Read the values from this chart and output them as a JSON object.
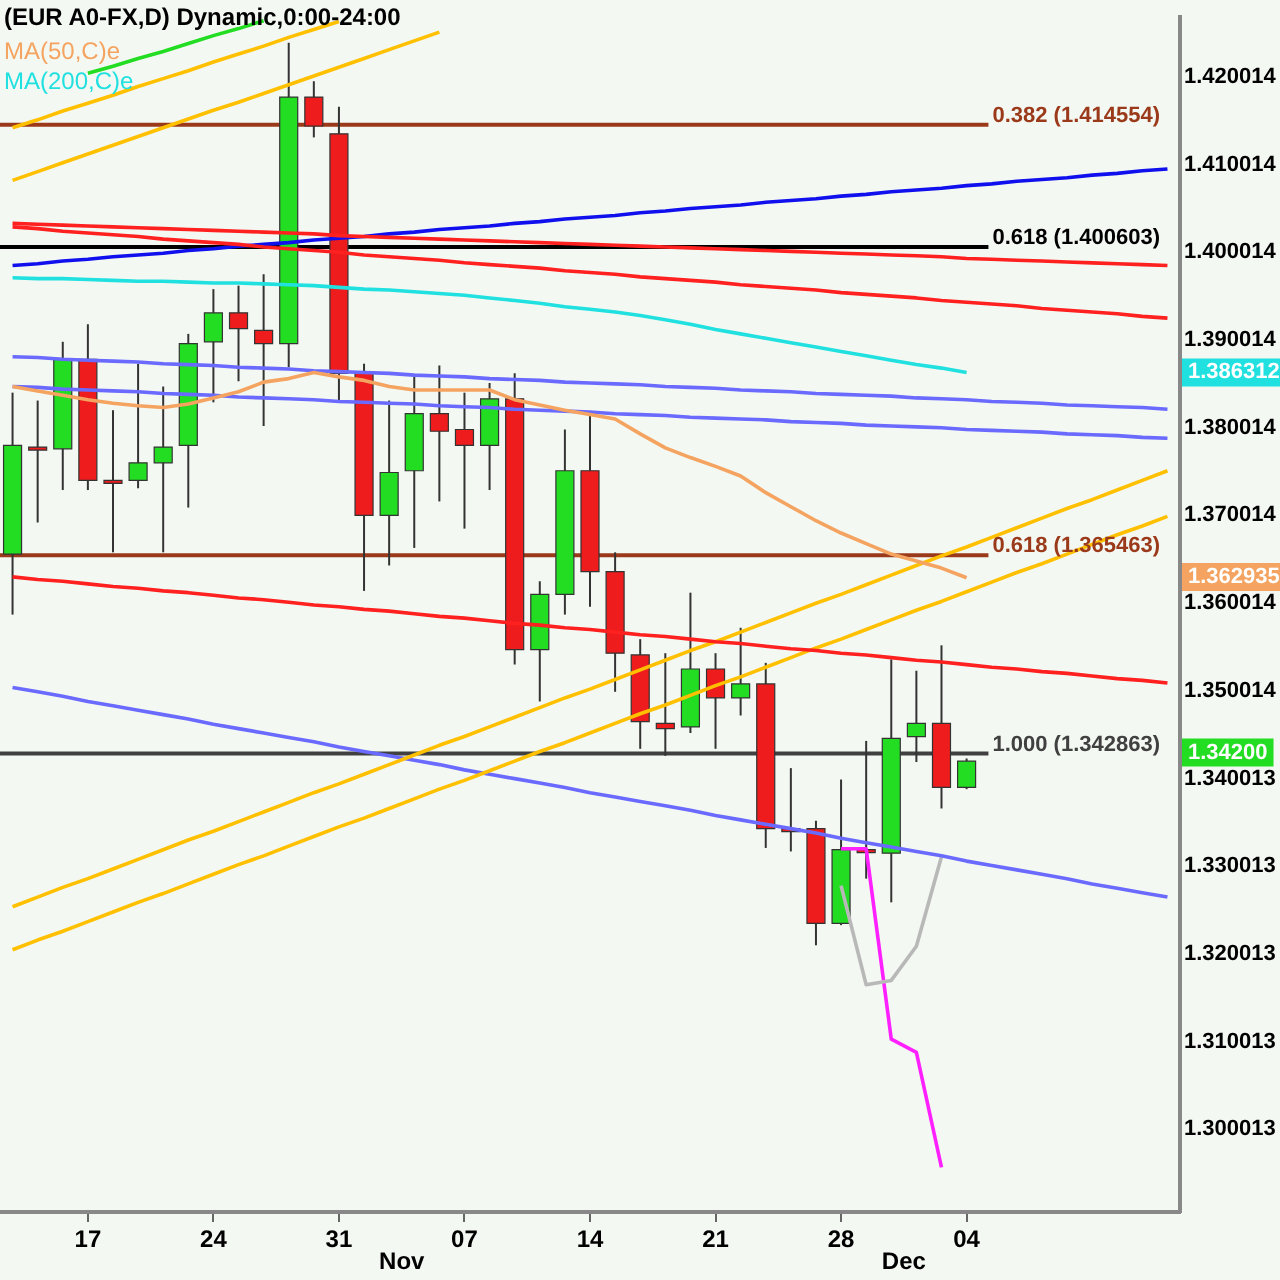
{
  "chart_data": {
    "type": "candlestick",
    "title": "(EUR A0-FX,D) Dynamic,0:00-24:00",
    "categories": [
      null,
      null,
      null,
      "17",
      null,
      null,
      null,
      null,
      "24",
      null,
      null,
      null,
      null,
      "31",
      null,
      null,
      null,
      null,
      "07",
      null,
      null,
      null,
      null,
      "14",
      null,
      null,
      null,
      null,
      "21",
      null,
      null,
      null,
      null,
      "28",
      null,
      null,
      null,
      null,
      "04",
      null,
      null,
      null,
      null,
      null,
      null,
      null,
      null
    ],
    "ohlc": [
      [
        1.3656,
        1.384,
        1.3587,
        1.378
      ],
      [
        1.3778,
        1.3831,
        1.3692,
        1.3776
      ],
      [
        1.3776,
        1.3898,
        1.3729,
        1.3878
      ],
      [
        1.3878,
        1.3918,
        1.3729,
        1.374
      ],
      [
        1.374,
        1.382,
        1.3658,
        1.374
      ],
      [
        1.374,
        1.3873,
        1.3731,
        1.376
      ],
      [
        1.376,
        1.3847,
        1.3658,
        1.3778
      ],
      [
        1.378,
        1.3907,
        1.3709,
        1.3896
      ],
      [
        1.3898,
        1.3958,
        1.3829,
        1.3931
      ],
      [
        1.3931,
        1.3962,
        1.3853,
        1.3913
      ],
      [
        1.3911,
        1.3975,
        1.3802,
        1.3896
      ],
      [
        1.3896,
        1.4239,
        1.3869,
        1.4177
      ],
      [
        1.4177,
        1.4195,
        1.4131,
        1.4144
      ],
      [
        1.4135,
        1.4166,
        1.3831,
        1.3862
      ],
      [
        1.3862,
        1.3873,
        1.3614,
        1.37
      ],
      [
        1.37,
        1.3831,
        1.3643,
        1.3749
      ],
      [
        1.3751,
        1.3858,
        1.3663,
        1.3816
      ],
      [
        1.3816,
        1.3871,
        1.3716,
        1.3796
      ],
      [
        1.3798,
        1.384,
        1.3685,
        1.378
      ],
      [
        1.378,
        1.3851,
        1.3729,
        1.3833
      ],
      [
        1.3833,
        1.3862,
        1.353,
        1.3547
      ],
      [
        1.3547,
        1.3625,
        1.3488,
        1.361
      ],
      [
        1.361,
        1.3798,
        1.3587,
        1.3751
      ],
      [
        1.3751,
        1.3818,
        1.3596,
        1.3636
      ],
      [
        1.3636,
        1.3658,
        1.3499,
        1.3543
      ],
      [
        1.3541,
        1.3559,
        1.3434,
        1.3465
      ],
      [
        1.3463,
        1.3543,
        1.3426,
        1.3457
      ],
      [
        1.3459,
        1.3612,
        1.3452,
        1.3525
      ],
      [
        1.3525,
        1.3543,
        1.3434,
        1.3492
      ],
      [
        1.3492,
        1.3572,
        1.3472,
        1.3508
      ],
      [
        1.3508,
        1.3532,
        1.3321,
        1.3343
      ],
      [
        1.3343,
        1.3412,
        1.3317,
        1.3343
      ],
      [
        1.3343,
        1.3352,
        1.321,
        1.3235
      ],
      [
        1.3235,
        1.3399,
        1.3233,
        1.3319
      ],
      [
        1.3319,
        1.3443,
        1.3286,
        1.3317
      ],
      [
        1.3315,
        1.3536,
        1.3259,
        1.3446
      ],
      [
        1.3448,
        1.3523,
        1.3419,
        1.3463
      ],
      [
        1.3463,
        1.3552,
        1.3366,
        1.339
      ],
      [
        1.339,
        1.3423,
        1.3388,
        1.342
      ],
      null,
      null,
      null,
      null,
      null,
      null,
      null,
      null
    ],
    "colors": [
      "#22dd22",
      "#ee1c1c",
      "#22dd22",
      "#ee1c1c",
      "#ee1c1c",
      "#22dd22",
      "#22dd22",
      "#22dd22",
      "#22dd22",
      "#ee1c1c",
      "#ee1c1c",
      "#22dd22",
      "#ee1c1c",
      "#ee1c1c",
      "#ee1c1c",
      "#22dd22",
      "#22dd22",
      "#ee1c1c",
      "#ee1c1c",
      "#22dd22",
      "#ee1c1c",
      "#22dd22",
      "#22dd22",
      "#ee1c1c",
      "#ee1c1c",
      "#ee1c1c",
      "#ee1c1c",
      "#22dd22",
      "#ee1c1c",
      "#22dd22",
      "#ee1c1c",
      "#ee1c1c",
      "#ee1c1c",
      "#22dd22",
      "#ee1c1c",
      "#22dd22",
      "#22dd22",
      "#ee1c1c",
      "#22dd22",
      null,
      null,
      null,
      null,
      null,
      null,
      null,
      null
    ],
    "series": [
      {
        "name": "MA(50,C)e",
        "type": "line",
        "color": "#f4a460",
        "values": [
          1.3847,
          1.3842,
          1.3837,
          1.3832,
          1.3828,
          1.3825,
          1.3823,
          1.3827,
          1.3834,
          1.3841,
          1.3852,
          1.3856,
          1.3863,
          1.3858,
          1.3854,
          1.3847,
          1.3843,
          1.3843,
          1.3843,
          1.3843,
          1.3832,
          1.3826,
          1.382,
          1.3815,
          1.381,
          1.3793,
          1.3777,
          1.3766,
          1.3756,
          1.3745,
          1.3726,
          1.371,
          1.3694,
          1.368,
          1.3668,
          1.3656,
          1.3648,
          1.364,
          1.3629,
          null,
          null,
          null,
          null,
          null,
          null,
          null,
          null
        ]
      },
      {
        "name": "MA(200,C)e",
        "type": "line",
        "color": "#20e0e0",
        "values": [
          1.3971,
          1.397,
          1.397,
          1.3969,
          1.3968,
          1.3967,
          1.3967,
          1.3966,
          1.3965,
          1.3965,
          1.3964,
          1.3963,
          1.3962,
          1.396,
          1.3958,
          1.3957,
          1.3955,
          1.3953,
          1.3951,
          1.3948,
          1.3945,
          1.3942,
          1.3938,
          1.3935,
          1.3932,
          1.3928,
          1.3923,
          1.3918,
          1.3912,
          1.3907,
          1.3902,
          1.3897,
          1.3892,
          1.3887,
          1.3882,
          1.3877,
          1.3872,
          1.3868,
          1.3863,
          null,
          null,
          null,
          null,
          null,
          null,
          null,
          null
        ]
      },
      {
        "type": "line",
        "color": "#22dd22",
        "values": [
          null,
          null,
          null,
          1.4204,
          1.4212,
          1.4221,
          1.4229,
          1.4238,
          1.4247,
          1.4255,
          1.4264,
          null,
          null,
          null,
          null,
          null,
          null,
          null,
          null,
          null,
          null,
          null,
          null,
          null,
          null,
          null,
          null,
          null,
          null,
          null,
          null,
          null,
          null,
          null,
          null,
          null,
          null,
          null,
          null,
          null,
          null,
          null,
          null,
          null,
          null,
          null,
          null
        ]
      },
      {
        "type": "line",
        "color": "#ffc000",
        "values": [
          1.4142,
          1.4151,
          1.4161,
          1.417,
          1.4179,
          1.4189,
          1.4198,
          1.4207,
          1.4217,
          1.4226,
          1.4235,
          1.4245,
          1.4254,
          1.4263,
          null,
          null,
          null,
          null,
          null,
          null,
          null,
          null,
          null,
          null,
          null,
          null,
          null,
          null,
          null,
          null,
          null,
          null,
          null,
          null,
          null,
          null,
          null,
          null,
          null,
          null,
          null,
          null,
          null,
          null,
          null,
          null,
          null
        ]
      },
      {
        "type": "line",
        "color": "#ffc000",
        "values": [
          1.4082,
          1.4092,
          1.4102,
          1.4112,
          1.4122,
          1.4132,
          1.4142,
          1.4152,
          1.4162,
          1.4171,
          1.4181,
          1.4191,
          1.4201,
          1.4211,
          1.4221,
          1.4231,
          1.4241,
          1.4251,
          null,
          null,
          null,
          null,
          null,
          null,
          null,
          null,
          null,
          null,
          null,
          null,
          null,
          null,
          null,
          null,
          null,
          null,
          null,
          null,
          null,
          null,
          null,
          null,
          null,
          null,
          null,
          null,
          null
        ]
      },
      {
        "type": "line",
        "color": "#ff2020",
        "values": [
          1.4033,
          1.4032,
          1.4031,
          1.403,
          1.4029,
          1.4028,
          1.4027,
          1.4026,
          1.4025,
          1.4024,
          1.4023,
          1.4022,
          1.4021,
          1.4019,
          1.4018,
          1.4017,
          1.4016,
          1.4015,
          1.4014,
          1.4013,
          1.4012,
          1.4011,
          1.401,
          1.4009,
          1.4008,
          1.4007,
          1.4006,
          1.4005,
          1.4004,
          1.4003,
          1.4002,
          1.4001,
          1.4,
          1.3999,
          1.3998,
          1.3997,
          1.3996,
          1.3995,
          1.3993,
          1.3992,
          1.3991,
          1.399,
          1.3989,
          1.3988,
          1.3987,
          1.3986,
          1.3985
        ]
      },
      {
        "type": "line",
        "color": "#ff2020",
        "values": [
          1.4029,
          1.4027,
          1.4024,
          1.4022,
          1.402,
          1.4018,
          1.4015,
          1.4013,
          1.4011,
          1.4009,
          1.4006,
          1.4004,
          1.4002,
          1.4,
          1.3997,
          1.3995,
          1.3993,
          1.3991,
          1.3988,
          1.3986,
          1.3984,
          1.3982,
          1.3979,
          1.3977,
          1.3975,
          1.3972,
          1.397,
          1.3968,
          1.3966,
          1.3963,
          1.3961,
          1.3959,
          1.3957,
          1.3954,
          1.3952,
          1.395,
          1.3948,
          1.3945,
          1.3943,
          1.3941,
          1.3939,
          1.3936,
          1.3934,
          1.3932,
          1.393,
          1.3927,
          1.3925
        ]
      },
      {
        "type": "line",
        "color": "#1010ee",
        "values": [
          1.3985,
          1.3987,
          1.399,
          1.3992,
          1.3995,
          1.3997,
          1.3999,
          1.4002,
          1.4004,
          1.4007,
          1.4009,
          1.4011,
          1.4014,
          1.4016,
          1.4018,
          1.4021,
          1.4023,
          1.4026,
          1.4028,
          1.403,
          1.4033,
          1.4035,
          1.4038,
          1.404,
          1.4042,
          1.4045,
          1.4047,
          1.405,
          1.4052,
          1.4054,
          1.4057,
          1.4059,
          1.4061,
          1.4064,
          1.4066,
          1.4069,
          1.4071,
          1.4073,
          1.4076,
          1.4078,
          1.4081,
          1.4083,
          1.4085,
          1.4088,
          1.409,
          1.4093,
          1.4095
        ]
      },
      {
        "type": "line",
        "color": "#6a6aff",
        "values": [
          1.3881,
          1.388,
          1.3878,
          1.3877,
          1.3876,
          1.3875,
          1.3873,
          1.3872,
          1.3871,
          1.3869,
          1.3868,
          1.3867,
          1.3865,
          1.3864,
          1.3863,
          1.3862,
          1.386,
          1.3859,
          1.3858,
          1.3856,
          1.3855,
          1.3854,
          1.3852,
          1.3851,
          1.385,
          1.3849,
          1.3847,
          1.3846,
          1.3845,
          1.3843,
          1.3842,
          1.3841,
          1.3839,
          1.3838,
          1.3837,
          1.3836,
          1.3834,
          1.3833,
          1.3832,
          1.383,
          1.3829,
          1.3828,
          1.3826,
          1.3825,
          1.3824,
          1.3823,
          1.3821
        ]
      },
      {
        "type": "line",
        "color": "#6a6aff",
        "values": [
          1.3847,
          1.3846,
          1.3844,
          1.3843,
          1.3842,
          1.3841,
          1.3839,
          1.3838,
          1.3837,
          1.3835,
          1.3834,
          1.3833,
          1.3832,
          1.383,
          1.3829,
          1.3828,
          1.3827,
          1.3825,
          1.3824,
          1.3823,
          1.3821,
          1.382,
          1.3819,
          1.3818,
          1.3816,
          1.3815,
          1.3814,
          1.3812,
          1.3811,
          1.381,
          1.3809,
          1.3807,
          1.3806,
          1.3805,
          1.3803,
          1.3802,
          1.3801,
          1.38,
          1.3798,
          1.3797,
          1.3796,
          1.3795,
          1.3793,
          1.3792,
          1.3791,
          1.3789,
          1.3788
        ]
      },
      {
        "type": "line",
        "color": "#ff2020",
        "values": [
          1.363,
          1.3627,
          1.3625,
          1.3622,
          1.3619,
          1.3617,
          1.3614,
          1.3612,
          1.3609,
          1.3606,
          1.3604,
          1.3601,
          1.3598,
          1.3596,
          1.3593,
          1.3591,
          1.3588,
          1.3585,
          1.3583,
          1.358,
          1.3577,
          1.3575,
          1.3572,
          1.357,
          1.3567,
          1.3564,
          1.3562,
          1.3559,
          1.3556,
          1.3554,
          1.3551,
          1.3548,
          1.3546,
          1.3543,
          1.3541,
          1.3538,
          1.3535,
          1.3533,
          1.353,
          1.3527,
          1.3525,
          1.3522,
          1.352,
          1.3517,
          1.3514,
          1.3512,
          1.3509
        ]
      },
      {
        "type": "line",
        "color": "#ffc000",
        "values": [
          1.3254,
          1.3265,
          1.3276,
          1.3286,
          1.3297,
          1.3308,
          1.3319,
          1.333,
          1.334,
          1.3351,
          1.3362,
          1.3373,
          1.3384,
          1.3394,
          1.3405,
          1.3416,
          1.3427,
          1.3438,
          1.3448,
          1.3459,
          1.347,
          1.3481,
          1.3492,
          1.3502,
          1.3513,
          1.3524,
          1.3535,
          1.3546,
          1.3556,
          1.3567,
          1.3578,
          1.3589,
          1.36,
          1.361,
          1.3621,
          1.3632,
          1.3643,
          1.3654,
          1.3664,
          1.3675,
          1.3686,
          1.3697,
          1.3708,
          1.3718,
          1.3729,
          1.374,
          1.3751
        ]
      },
      {
        "type": "line",
        "color": "#ffc000",
        "values": [
          1.3205,
          1.3216,
          1.3226,
          1.3237,
          1.3248,
          1.3259,
          1.3269,
          1.328,
          1.3291,
          1.3302,
          1.3312,
          1.3323,
          1.3334,
          1.3345,
          1.3355,
          1.3366,
          1.3377,
          1.3388,
          1.3398,
          1.3409,
          1.342,
          1.3431,
          1.3441,
          1.3452,
          1.3463,
          1.3474,
          1.3484,
          1.3495,
          1.3506,
          1.3516,
          1.3527,
          1.3538,
          1.3549,
          1.3559,
          1.357,
          1.3581,
          1.3592,
          1.3602,
          1.3613,
          1.3624,
          1.3635,
          1.3645,
          1.3656,
          1.3667,
          1.3678,
          1.3688,
          1.3699
        ]
      },
      {
        "type": "line",
        "color": "#6a6aff",
        "values": [
          1.3504,
          1.3499,
          1.3494,
          1.3488,
          1.3483,
          1.3478,
          1.3473,
          1.3468,
          1.3462,
          1.3457,
          1.3452,
          1.3447,
          1.3442,
          1.3436,
          1.3431,
          1.3426,
          1.3421,
          1.3416,
          1.341,
          1.3405,
          1.34,
          1.3395,
          1.339,
          1.3384,
          1.3379,
          1.3374,
          1.3369,
          1.3364,
          1.3358,
          1.3353,
          1.3348,
          1.3343,
          1.3338,
          1.3332,
          1.3327,
          1.3322,
          1.3317,
          1.3312,
          1.3306,
          1.3301,
          1.3296,
          1.3291,
          1.3286,
          1.328,
          1.3275,
          1.327,
          1.3265
        ]
      },
      {
        "type": "line",
        "color": "#b8b8b8",
        "values": [
          null,
          null,
          null,
          null,
          null,
          null,
          null,
          null,
          null,
          null,
          null,
          null,
          null,
          null,
          null,
          null,
          null,
          null,
          null,
          null,
          null,
          null,
          null,
          null,
          null,
          null,
          null,
          null,
          null,
          null,
          null,
          null,
          null,
          1.3278,
          1.3165,
          1.317,
          1.3209,
          1.3311,
          null,
          null,
          null,
          null,
          null,
          null,
          null,
          null,
          null
        ]
      },
      {
        "type": "line",
        "color": "#ff20ff",
        "values": [
          null,
          null,
          null,
          null,
          null,
          null,
          null,
          null,
          null,
          null,
          null,
          null,
          null,
          null,
          null,
          null,
          null,
          null,
          null,
          null,
          null,
          null,
          null,
          null,
          null,
          null,
          null,
          null,
          null,
          null,
          null,
          null,
          null,
          1.332,
          1.332,
          1.3103,
          1.3088,
          1.2957,
          null,
          null,
          null,
          null,
          null,
          null,
          null,
          null,
          null
        ]
      }
    ],
    "ref_lines": [
      {
        "axis": "y",
        "value": 1.414554,
        "label": "0.382 (1.414554)",
        "color": "#9b3a1a"
      },
      {
        "axis": "y",
        "value": 1.400603,
        "label": "0.618 (1.400603)",
        "color": "#000000"
      },
      {
        "axis": "y",
        "value": 1.365463,
        "label": "0.618 (1.365463)",
        "color": "#9b3a1a"
      },
      {
        "axis": "y",
        "value": 1.342863,
        "label": "1.000 (1.342863)",
        "color": "#404040"
      }
    ],
    "annotations": [
      "Nov",
      "Dec",
      "1.386312",
      "1.362935",
      "1.34200"
    ],
    "ylim": [
      1.2906,
      1.4268
    ],
    "yticks": [
      1.300013,
      1.310013,
      1.320013,
      1.330013,
      1.340013,
      1.350014,
      1.360014,
      1.370014,
      1.380014,
      1.390014,
      1.400014,
      1.410014,
      1.420014
    ],
    "legend": "top left",
    "grid": false,
    "marker": "none"
  }
}
